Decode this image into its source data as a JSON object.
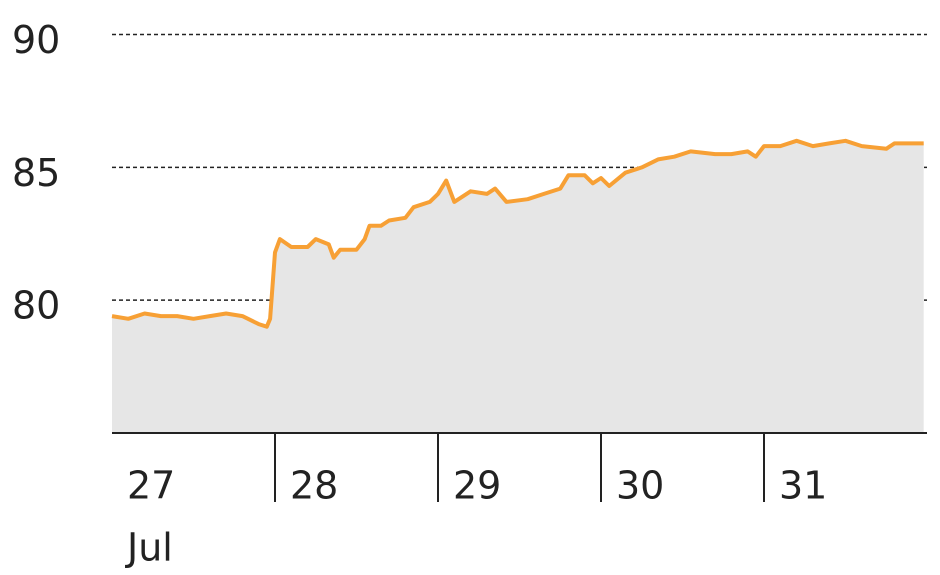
{
  "chart_data": {
    "type": "line",
    "x": [
      27.0,
      27.1,
      27.2,
      27.3,
      27.4,
      27.5,
      27.6,
      27.7,
      27.8,
      27.9,
      27.95,
      27.97,
      28.0,
      28.03,
      28.1,
      28.2,
      28.25,
      28.33,
      28.36,
      28.4,
      28.5,
      28.55,
      28.58,
      28.65,
      28.7,
      28.8,
      28.85,
      28.95,
      29.0,
      29.05,
      29.1,
      29.2,
      29.3,
      29.35,
      29.42,
      29.55,
      29.65,
      29.75,
      29.8,
      29.9,
      29.95,
      30.0,
      30.05,
      30.15,
      30.25,
      30.35,
      30.45,
      30.55,
      30.7,
      30.8,
      30.9,
      30.95,
      31.0,
      31.1,
      31.2,
      31.3,
      31.4,
      31.5,
      31.6,
      31.75,
      31.8,
      31.9,
      31.98
    ],
    "values": [
      79.4,
      79.3,
      79.5,
      79.4,
      79.4,
      79.3,
      79.4,
      79.5,
      79.4,
      79.1,
      79.0,
      79.3,
      81.8,
      82.3,
      82.0,
      82.0,
      82.3,
      82.1,
      81.6,
      81.9,
      81.9,
      82.3,
      82.8,
      82.8,
      83.0,
      83.1,
      83.5,
      83.7,
      84.0,
      84.5,
      83.7,
      84.1,
      84.0,
      84.2,
      83.7,
      83.8,
      84.0,
      84.2,
      84.7,
      84.7,
      84.4,
      84.6,
      84.3,
      84.8,
      85.0,
      85.3,
      85.4,
      85.6,
      85.5,
      85.5,
      85.6,
      85.4,
      85.8,
      85.8,
      86.0,
      85.8,
      85.9,
      86.0,
      85.8,
      85.7,
      85.9,
      85.9,
      85.9
    ],
    "color": "#f7a035",
    "fill_color": "#e6e6e6",
    "xlim": [
      27,
      32
    ],
    "xticks": [
      27,
      28,
      29,
      30,
      31
    ],
    "month_label": "Jul",
    "ylim": [
      75,
      91.3
    ],
    "yticks": [
      80,
      85,
      90
    ],
    "grid": true
  }
}
